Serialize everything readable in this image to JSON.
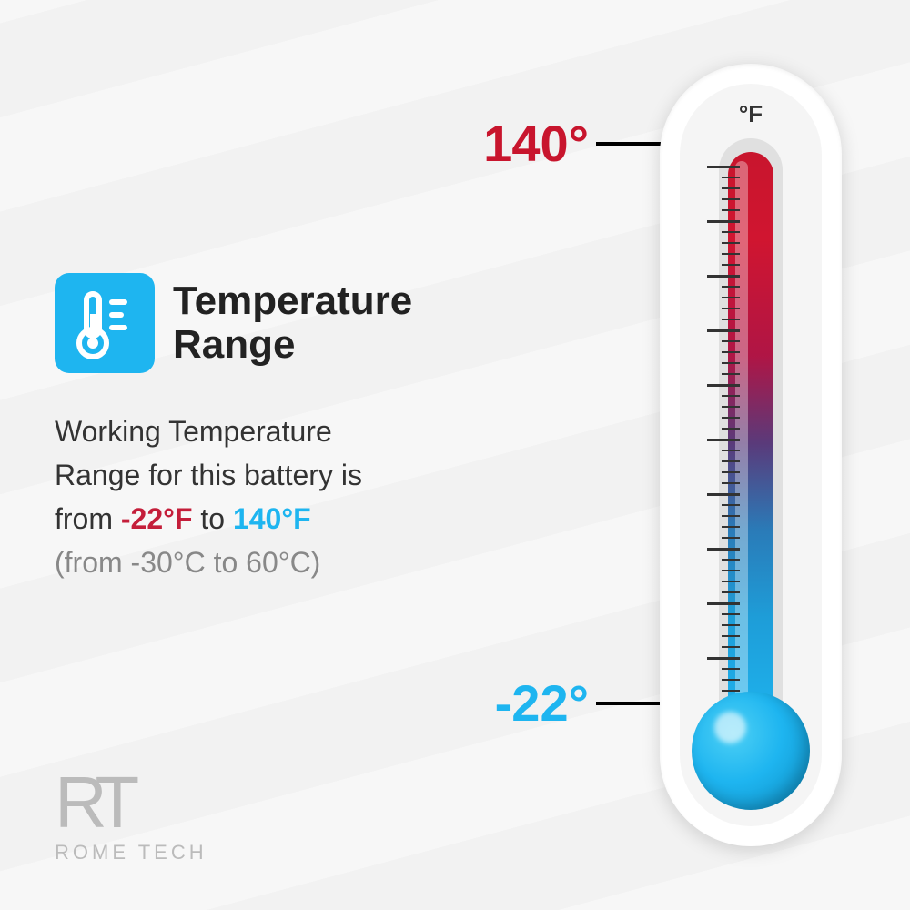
{
  "title": "Temperature\nRange",
  "description": {
    "line1": "Working Temperature",
    "line2": "Range for this battery is",
    "line3_prefix": "from ",
    "line3_low": "-22°F",
    "line3_mid": " to ",
    "line3_high": "140°F",
    "celsius": "(from -30°C to 60°C)"
  },
  "thermometer": {
    "unit": "°F",
    "high_label": "140°",
    "low_label": "-22°",
    "colors": {
      "hot": "#c8152d",
      "cold": "#1eb5f0",
      "icon_bg": "#1eb5f0"
    }
  },
  "logo": {
    "mark": "RT",
    "name": "ROME TECH"
  },
  "icon_name": "thermometer-icon"
}
